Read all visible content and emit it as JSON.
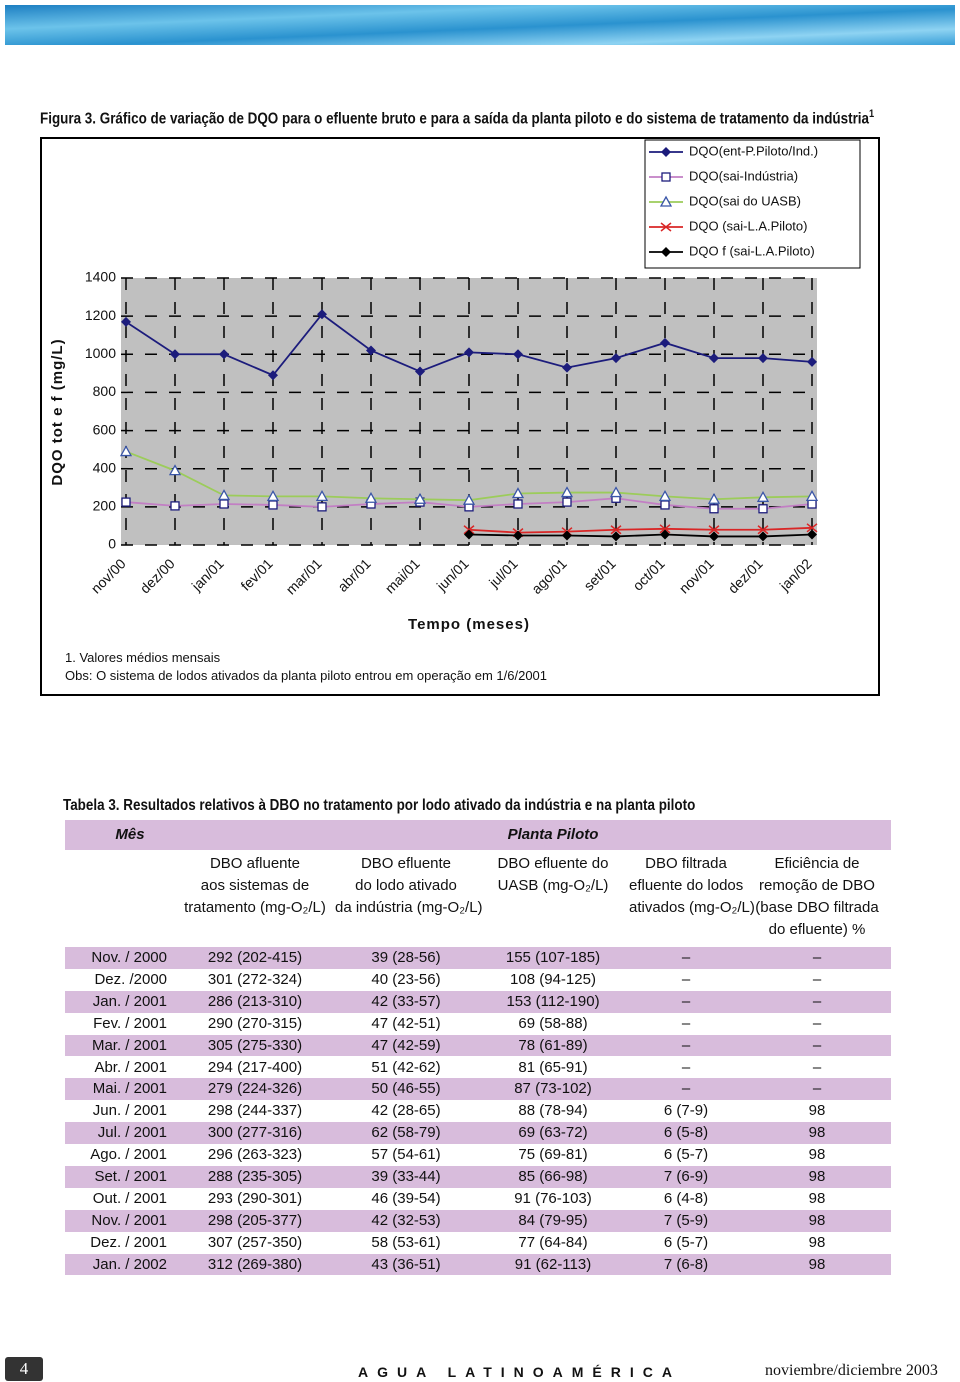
{
  "figure": {
    "caption": "Figura 3. Gráfico de variação de DQO para o efluente bruto e para a saída da planta piloto e do sistema de tratamento da indústria",
    "caption_note": "1"
  },
  "chart_data": {
    "type": "line",
    "y_label": "DQO tot e f (mg/L)",
    "x_label": "Tempo (meses)",
    "categories": [
      "nov/00",
      "dez/00",
      "jan/01",
      "fev/01",
      "mar/01",
      "abr/01",
      "mai/01",
      "jun/01",
      "jul/01",
      "ago/01",
      "set/01",
      "oct/01",
      "nov/01",
      "dez/01",
      "jan/02"
    ],
    "ylim": [
      0,
      1400
    ],
    "yticks": [
      0,
      200,
      400,
      600,
      800,
      1000,
      1200,
      1400
    ],
    "grid": true,
    "legend": "top-right",
    "series": [
      {
        "name": "DQO(ent-P.Piloto/Ind.)",
        "color": "#1c1c7c",
        "marker": "diamond",
        "marker_color": "#1c1c7c",
        "values": [
          1170,
          1000,
          1000,
          890,
          1210,
          1020,
          910,
          1010,
          1000,
          930,
          980,
          1060,
          980,
          980,
          960
        ]
      },
      {
        "name": "DQO(sai-Indústria)",
        "color": "#c27fc4",
        "marker": "square",
        "marker_color": "#1c1c7c",
        "values": [
          225,
          205,
          215,
          210,
          200,
          215,
          225,
          200,
          215,
          225,
          245,
          210,
          190,
          190,
          215
        ]
      },
      {
        "name": "DQO(sai do UASB)",
        "color": "#9ccc5a",
        "marker": "triangle",
        "marker_color": "#3a56a8",
        "values": [
          490,
          390,
          260,
          255,
          255,
          245,
          240,
          235,
          270,
          275,
          275,
          255,
          240,
          250,
          255
        ]
      },
      {
        "name": "DQO (sai-L.A.Piloto)",
        "color": "#d92626",
        "marker": "x",
        "marker_color": "#d92626",
        "values": [
          null,
          null,
          null,
          null,
          null,
          null,
          null,
          80,
          65,
          70,
          80,
          85,
          80,
          80,
          90
        ]
      },
      {
        "name": "DQO f (sai-L.A.Piloto)",
        "color": "#000000",
        "marker": "diamond",
        "marker_color": "#000000",
        "values": [
          null,
          null,
          null,
          null,
          null,
          null,
          null,
          55,
          50,
          50,
          45,
          55,
          45,
          45,
          55
        ]
      }
    ]
  },
  "notes": [
    "1. Valores médios mensais",
    "Obs: O sistema de lodos ativados da planta piloto entrou em operação em 1/6/2001"
  ],
  "table": {
    "title": "Tabela 3. Resultados relativos à DBO no tratamento por lodo ativado da indústria e na planta piloto",
    "header": [
      "Mês",
      "Planta Piloto"
    ],
    "columns": [
      [
        "DBO afluente",
        "aos sistemas de",
        "tratamento (mg-O₂/L)"
      ],
      [
        "DBO efluente",
        "do lodo ativado",
        "da indústria (mg-O₂/L)"
      ],
      [
        "DBO efluente do",
        "UASB (mg-O₂/L)"
      ],
      [
        "DBO filtrada",
        "efluente do lodos",
        "ativados (mg-O₂/L)"
      ],
      [
        "Eficiência de",
        "remoção de DBO",
        "(base DBO filtrada",
        "do efluente) %"
      ]
    ],
    "rows": [
      [
        "Nov. / 2000",
        "292 (202-415)",
        "39 (28-56)",
        "155 (107-185)",
        "–",
        "–"
      ],
      [
        "Dez. /2000",
        "301 (272-324)",
        "40 (23-56)",
        "108 (94-125)",
        "–",
        "–"
      ],
      [
        "Jan. / 2001",
        "286 (213-310)",
        "42 (33-57)",
        "153 (112-190)",
        "–",
        "–"
      ],
      [
        "Fev. / 2001",
        "290 (270-315)",
        "47 (42-51)",
        "69 (58-88)",
        "–",
        "–"
      ],
      [
        "Mar. / 2001",
        "305 (275-330)",
        "47 (42-59)",
        "78 (61-89)",
        "–",
        "–"
      ],
      [
        "Abr. / 2001",
        "294 (217-400)",
        "51 (42-62)",
        "81 (65-91)",
        "–",
        "–"
      ],
      [
        "Mai. / 2001",
        "279 (224-326)",
        "50 (46-55)",
        "87 (73-102)",
        "–",
        "–"
      ],
      [
        "Jun. / 2001",
        "298 (244-337)",
        "42 (28-65)",
        "88 (78-94)",
        "6 (7-9)",
        "98"
      ],
      [
        "Jul. / 2001",
        "300 (277-316)",
        "62 (58-79)",
        "69 (63-72)",
        "6 (5-8)",
        "98"
      ],
      [
        "Ago. / 2001",
        "296 (263-323)",
        "57 (54-61)",
        "75 (69-81)",
        "6 (5-7)",
        "98"
      ],
      [
        "Set. / 2001",
        "288 (235-305)",
        "39 (33-44)",
        "85 (66-98)",
        "7 (6-9)",
        "98"
      ],
      [
        "Out. / 2001",
        "293 (290-301)",
        "46 (39-54)",
        "91 (76-103)",
        "6 (4-8)",
        "98"
      ],
      [
        "Nov. / 2001",
        "298 (205-377)",
        "42 (32-53)",
        "84 (79-95)",
        "7 (5-9)",
        "98"
      ],
      [
        "Dez. / 2001",
        "307 (257-350)",
        "58 (53-61)",
        "77 (64-84)",
        "6 (5-7)",
        "98"
      ],
      [
        "Jan. / 2002",
        "312 (269-380)",
        "43 (36-51)",
        "91 (62-113)",
        "7 (6-8)",
        "98"
      ]
    ]
  },
  "footer": {
    "page": "4",
    "journal": "AGUA LATINOAMÉRICA",
    "issue": "noviembre/diciembre 2003"
  }
}
